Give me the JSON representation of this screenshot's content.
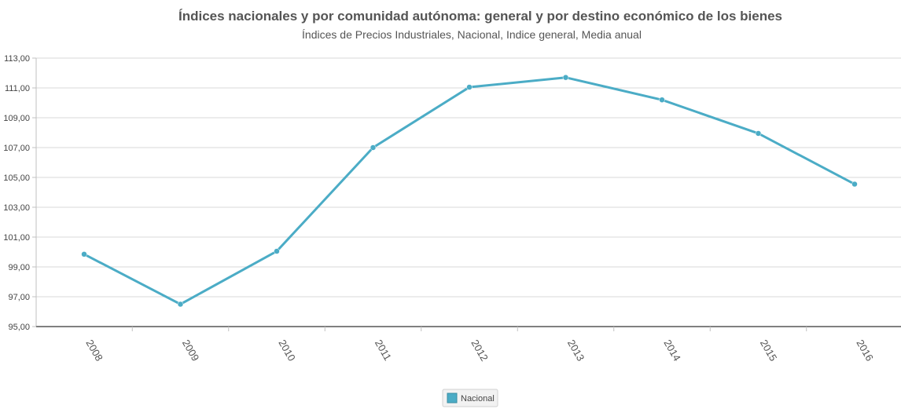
{
  "chart_data": {
    "type": "line",
    "title": "Índices nacionales y por comunidad autónoma: general y por destino económico de los bienes",
    "subtitle": "Índices de Precios Industriales, Nacional, Indice general, Media anual",
    "categories": [
      "2008",
      "2009",
      "2010",
      "2011",
      "2012",
      "2013",
      "2014",
      "2015",
      "2016"
    ],
    "series": [
      {
        "name": "Nacional",
        "values": [
          99.85,
          96.5,
          100.05,
          107.0,
          111.05,
          111.7,
          110.2,
          107.95,
          104.55
        ],
        "color": "#4bacc6"
      }
    ],
    "ylim": [
      95,
      113
    ],
    "yticks": [
      "95,00",
      "97,00",
      "99,00",
      "101,00",
      "103,00",
      "105,00",
      "107,00",
      "109,00",
      "111,00",
      "113,00"
    ],
    "ytick_values": [
      95,
      97,
      99,
      101,
      103,
      105,
      107,
      109,
      111,
      113
    ],
    "grid": true,
    "legend_position": "bottom-center"
  }
}
